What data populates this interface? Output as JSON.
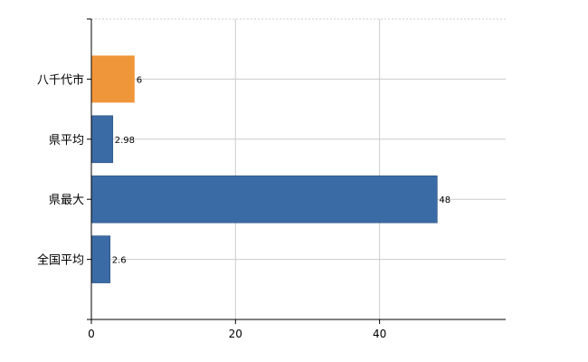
{
  "chart_data": {
    "type": "bar",
    "orientation": "horizontal",
    "categories": [
      "八千代市",
      "県平均",
      "県最大",
      "全国平均"
    ],
    "values": [
      6,
      2.98,
      48,
      2.6
    ],
    "data_labels": [
      "6",
      "2.98",
      "48",
      "2.6"
    ],
    "xlim": [
      0,
      57.5
    ],
    "x_ticks": [
      0,
      20,
      40
    ],
    "x_tick_labels": [
      "0",
      "20",
      "40"
    ],
    "grid": true,
    "highlight_color": "#f0963a",
    "default_color": "#3b6ba5",
    "highlight_category": "八千代市"
  }
}
